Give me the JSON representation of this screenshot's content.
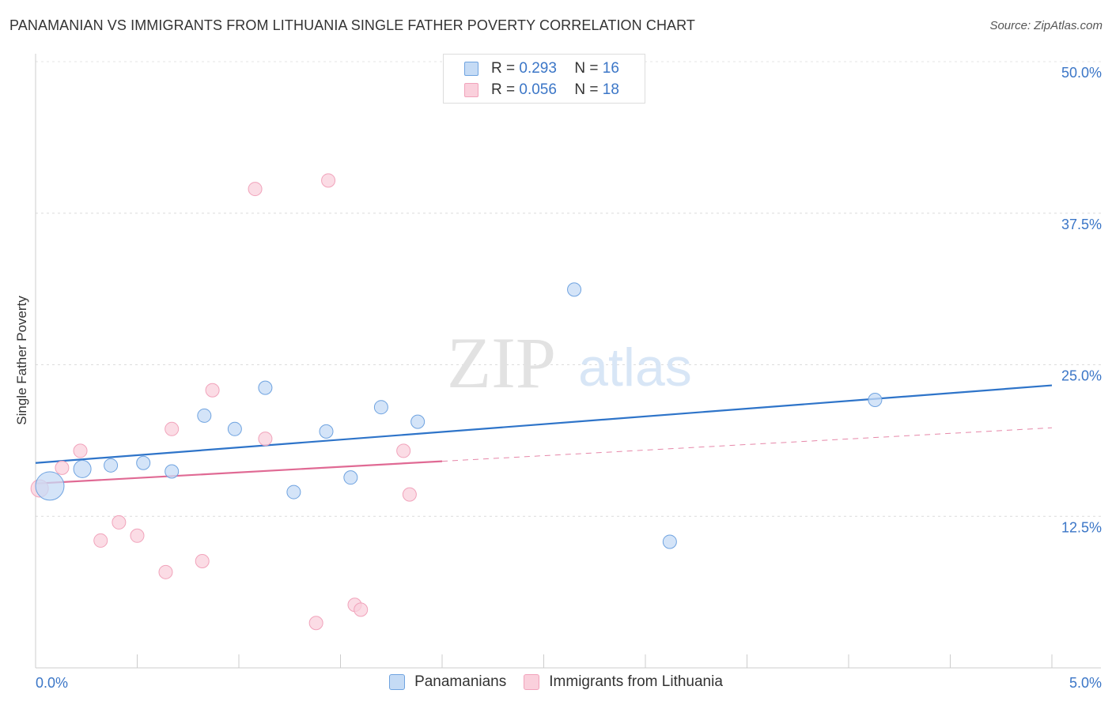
{
  "title": "PANAMANIAN VS IMMIGRANTS FROM LITHUANIA SINGLE FATHER POVERTY CORRELATION CHART",
  "source": "Source: ZipAtlas.com",
  "watermark": {
    "zip": "ZIP",
    "atlas": "atlas"
  },
  "legend": {
    "rows": [
      {
        "r_label": "R =",
        "r_value": "0.293",
        "n_label": "N =",
        "n_value": "16"
      },
      {
        "r_label": "R =",
        "r_value": "0.056",
        "n_label": "N =",
        "n_value": "18"
      }
    ]
  },
  "chart_data": {
    "type": "scatter",
    "title": "PANAMANIAN VS IMMIGRANTS FROM LITHUANIA SINGLE FATHER POVERTY CORRELATION CHART",
    "xlabel": "",
    "ylabel": "Single Father Poverty",
    "xlim": [
      0.0,
      5.0
    ],
    "ylim": [
      0.0,
      50.0
    ],
    "x_tick_labels": [
      "0.0%",
      "5.0%"
    ],
    "y_ticks": [
      12.5,
      25.0,
      37.5,
      50.0
    ],
    "y_tick_labels": [
      "12.5%",
      "25.0%",
      "37.5%",
      "50.0%"
    ],
    "grid": true,
    "legend_position": "top-center",
    "series": [
      {
        "name": "Panamanians",
        "color": "#6fa3e0",
        "fill": "#c5dbf5",
        "line_color": "#2e74c9",
        "trend": {
          "x0": 0.0,
          "y0": 16.9,
          "x1": 5.0,
          "y1": 23.3,
          "dashed_from": null
        },
        "points": [
          {
            "x": 0.07,
            "y": 15.0,
            "size": 3
          },
          {
            "x": 0.23,
            "y": 16.4,
            "size": 2
          },
          {
            "x": 0.37,
            "y": 16.7,
            "size": 1
          },
          {
            "x": 0.53,
            "y": 16.9,
            "size": 1
          },
          {
            "x": 0.67,
            "y": 16.2,
            "size": 1
          },
          {
            "x": 0.83,
            "y": 20.8,
            "size": 1
          },
          {
            "x": 0.98,
            "y": 19.7,
            "size": 1
          },
          {
            "x": 1.13,
            "y": 23.1,
            "size": 1
          },
          {
            "x": 1.27,
            "y": 14.5,
            "size": 1
          },
          {
            "x": 1.43,
            "y": 19.5,
            "size": 1
          },
          {
            "x": 1.55,
            "y": 15.7,
            "size": 1
          },
          {
            "x": 1.7,
            "y": 21.5,
            "size": 1
          },
          {
            "x": 1.88,
            "y": 20.3,
            "size": 1
          },
          {
            "x": 2.65,
            "y": 31.2,
            "size": 1
          },
          {
            "x": 3.12,
            "y": 10.4,
            "size": 1
          },
          {
            "x": 4.13,
            "y": 22.1,
            "size": 1
          }
        ]
      },
      {
        "name": "Immigrants from Lithuania",
        "color": "#f1a3bb",
        "fill": "#fad0dc",
        "line_color": "#e06a94",
        "trend": {
          "x0": 0.0,
          "y0": 15.2,
          "x1": 5.0,
          "y1": 19.8,
          "dashed_from": 2.0
        },
        "points": [
          {
            "x": 0.02,
            "y": 14.8,
            "size": 2
          },
          {
            "x": 0.13,
            "y": 16.5,
            "size": 1
          },
          {
            "x": 0.22,
            "y": 17.9,
            "size": 1
          },
          {
            "x": 0.32,
            "y": 10.5,
            "size": 1
          },
          {
            "x": 0.41,
            "y": 12.0,
            "size": 1
          },
          {
            "x": 0.5,
            "y": 10.9,
            "size": 1
          },
          {
            "x": 0.64,
            "y": 7.9,
            "size": 1
          },
          {
            "x": 0.67,
            "y": 19.7,
            "size": 1
          },
          {
            "x": 0.82,
            "y": 8.8,
            "size": 1
          },
          {
            "x": 0.87,
            "y": 22.9,
            "size": 1
          },
          {
            "x": 1.08,
            "y": 39.5,
            "size": 1
          },
          {
            "x": 1.13,
            "y": 18.9,
            "size": 1
          },
          {
            "x": 1.38,
            "y": 3.7,
            "size": 1
          },
          {
            "x": 1.44,
            "y": 40.2,
            "size": 1
          },
          {
            "x": 1.57,
            "y": 5.2,
            "size": 1
          },
          {
            "x": 1.6,
            "y": 4.8,
            "size": 1
          },
          {
            "x": 1.81,
            "y": 17.9,
            "size": 1
          },
          {
            "x": 1.84,
            "y": 14.3,
            "size": 1
          }
        ]
      }
    ]
  }
}
